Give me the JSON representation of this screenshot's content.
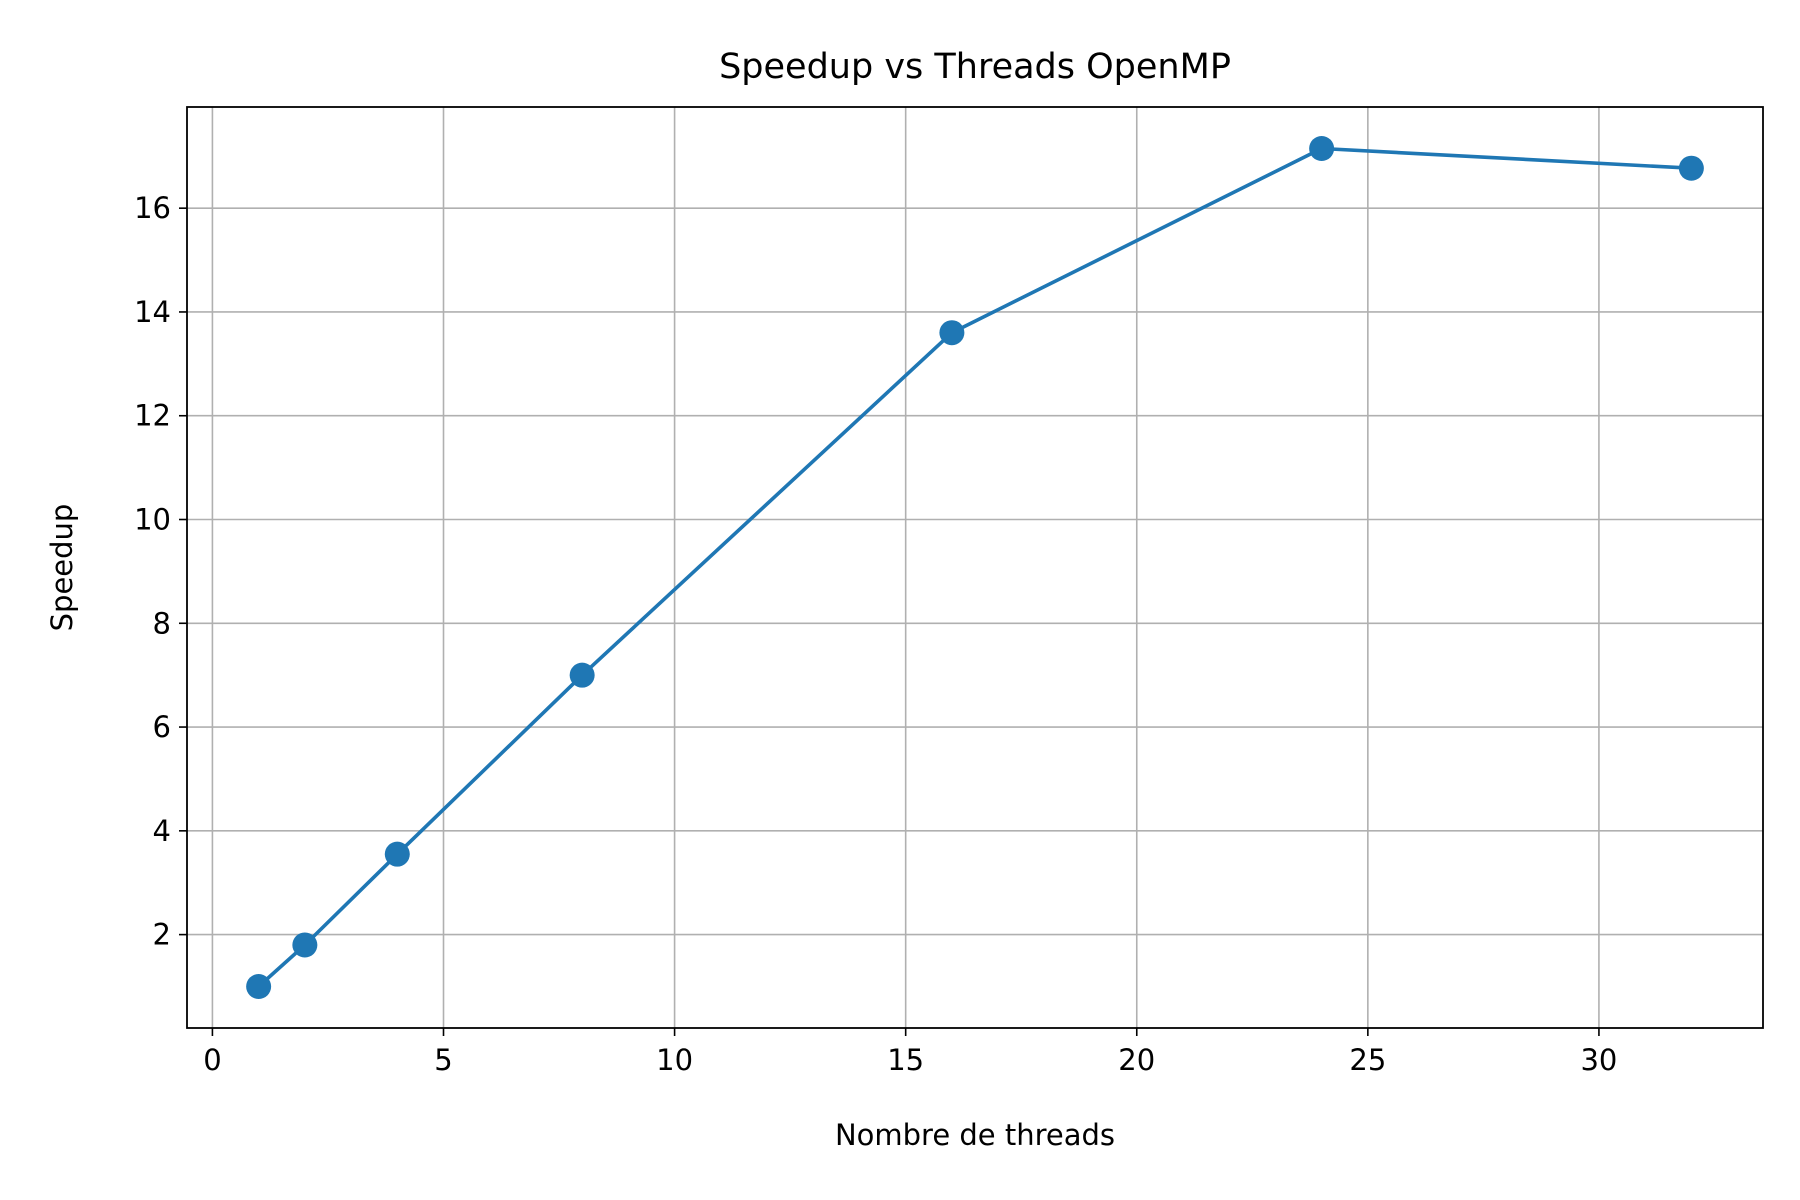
{
  "chart_data": {
    "type": "line",
    "title": "Speedup vs Threads OpenMP",
    "xlabel": "Nombre de threads",
    "ylabel": "Speedup",
    "x": [
      1,
      2,
      4,
      8,
      16,
      24,
      32
    ],
    "series": [
      {
        "values": [
          1.0,
          1.8,
          3.55,
          7.0,
          13.6,
          17.15,
          16.77
        ]
      }
    ],
    "xlim": [
      -0.55,
      33.55
    ],
    "ylim": [
      0.2,
      17.95
    ],
    "xticks": [
      0,
      5,
      10,
      15,
      20,
      25,
      30
    ],
    "yticks": [
      2,
      4,
      6,
      8,
      10,
      12,
      14,
      16
    ],
    "grid": true,
    "markers": "circle",
    "colors": {
      "line": "#1f77b4",
      "grid": "#b0b0b0",
      "axes": "#000000"
    }
  }
}
